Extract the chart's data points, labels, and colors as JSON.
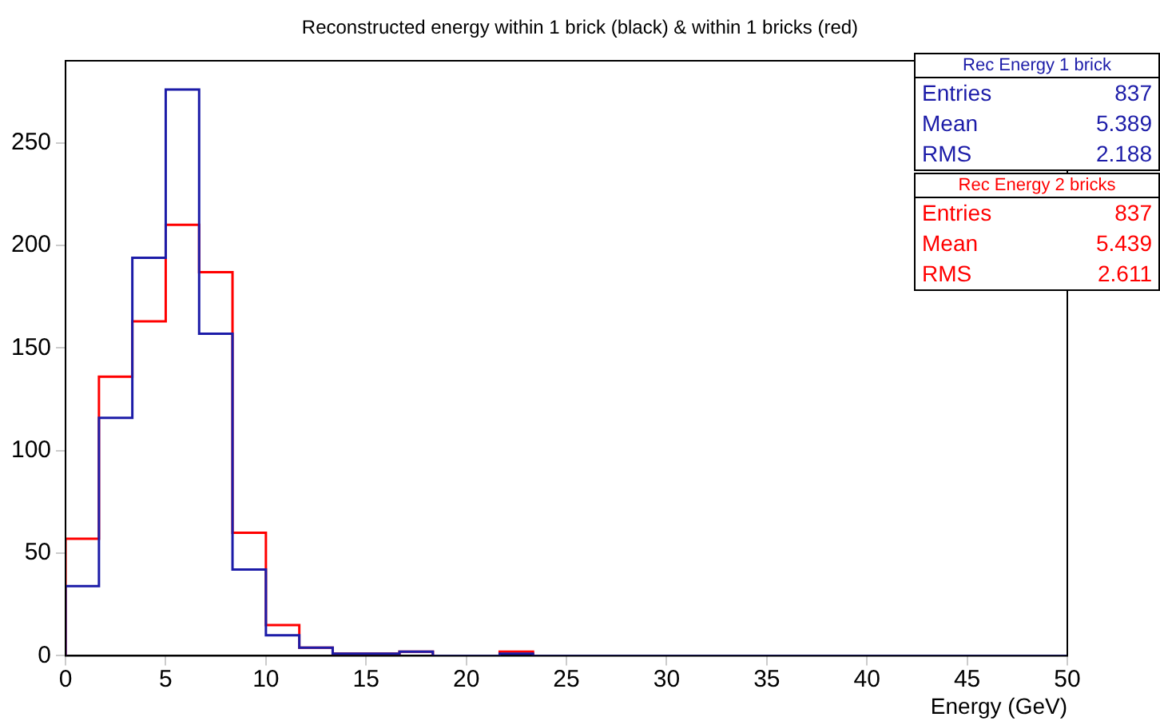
{
  "chart_data": {
    "type": "histogram",
    "title": "Reconstructed energy within 1 brick (black) & within 1 bricks (red)",
    "xlabel": "Energy (GeV)",
    "bins": [
      0,
      1.667,
      3.333,
      5,
      6.667,
      8.333,
      10,
      11.667,
      13.333,
      15,
      16.667,
      18.333,
      20,
      21.667,
      23.333,
      25,
      26.667,
      28.333,
      30,
      31.667,
      33.333,
      35,
      36.667,
      38.333,
      40,
      41.667,
      43.333,
      45,
      46.667,
      48.333,
      50
    ],
    "series": [
      {
        "name": "Rec Energy 1 brick",
        "color": "#1c1ca8",
        "values": [
          34,
          116,
          194,
          276,
          157,
          42,
          10,
          4,
          1,
          1,
          2,
          0,
          0,
          1,
          0,
          0,
          0,
          0,
          0,
          0,
          0,
          0,
          0,
          0,
          0,
          0,
          0,
          0,
          0,
          0
        ]
      },
      {
        "name": "Rec Energy 2 bricks",
        "color": "#ff0000",
        "values": [
          57,
          136,
          163,
          210,
          187,
          60,
          15,
          4,
          1,
          1,
          2,
          0,
          0,
          2,
          0,
          0,
          0,
          0,
          0,
          0,
          0,
          0,
          0,
          0,
          0,
          0,
          0,
          0,
          0,
          0
        ]
      }
    ],
    "annotations": [
      "Entries 837",
      "Mean 5.389",
      "RMS 2.188",
      "Entries 837",
      "Mean 5.439",
      "RMS 2.611"
    ],
    "xlim": [
      0,
      50
    ],
    "xticks": [
      0,
      5,
      10,
      15,
      20,
      25,
      30,
      35,
      40,
      45,
      50
    ],
    "ylim": [
      0,
      290
    ],
    "yticks": [
      0,
      50,
      100,
      150,
      200,
      250
    ],
    "grid": false,
    "legend": "top right"
  }
}
